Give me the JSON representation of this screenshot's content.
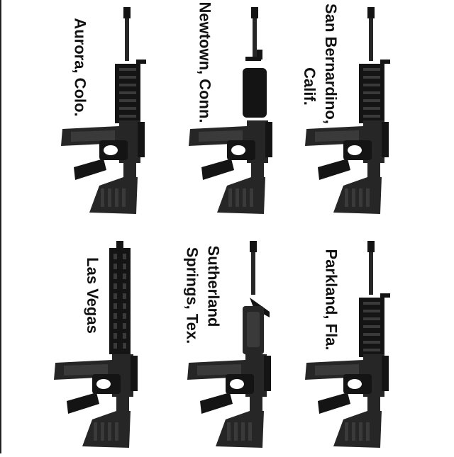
{
  "captions": {
    "aurora": "Aurora, Colo.",
    "newtown": "Newtown, Conn.",
    "san_bernardino_line1": "Calif.",
    "san_bernardino_line2": "San Bernardino,",
    "las_vegas": "Las Vegas",
    "sutherland_line1": "Sutherland",
    "sutherland_line2": "Springs, Tex.",
    "parkland": "Parkland, Fla."
  },
  "colors": {
    "rifle": "#262626",
    "rifle_dark": "#141414",
    "rifle_light": "#3a3a3a"
  }
}
